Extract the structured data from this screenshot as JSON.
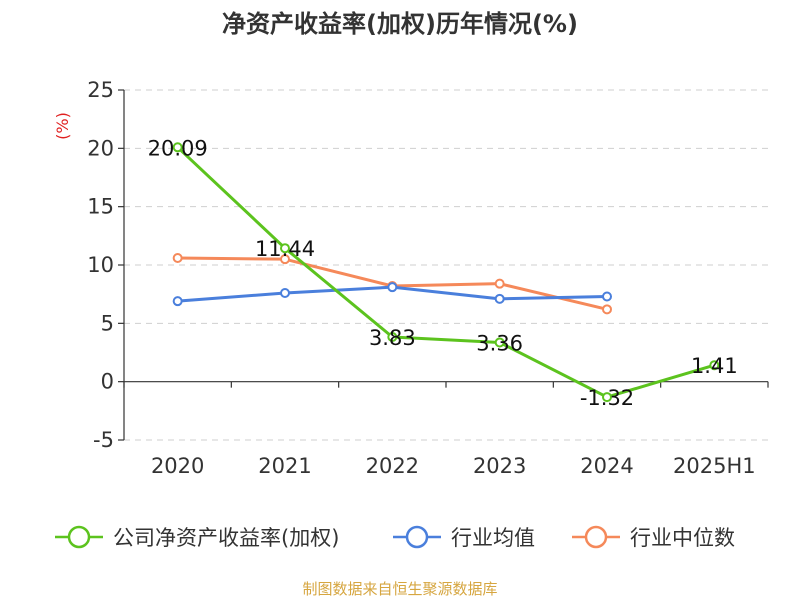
{
  "chart_data": {
    "type": "line",
    "title": "净资产收益率(加权)历年情况(%)",
    "ylabel": "(%)",
    "xlabel": "",
    "categories": [
      "2020",
      "2021",
      "2022",
      "2023",
      "2024",
      "2025H1"
    ],
    "ylim": [
      -5,
      25
    ],
    "yticks": [
      -5,
      0,
      5,
      10,
      15,
      20,
      25
    ],
    "grid": true,
    "legend_position": "bottom",
    "series": [
      {
        "name": "公司净资产收益率(加权)",
        "color": "#5cc31e",
        "values": [
          20.09,
          11.44,
          3.83,
          3.36,
          -1.32,
          1.41
        ],
        "labels": [
          "20.09",
          "11.44",
          "3.83",
          "3.36",
          "-1.32",
          "1.41"
        ]
      },
      {
        "name": "行业均值",
        "color": "#4a7fdc",
        "values": [
          6.9,
          7.6,
          8.1,
          7.1,
          7.3,
          null
        ]
      },
      {
        "name": "行业中位数",
        "color": "#f5895a",
        "values": [
          10.6,
          10.5,
          8.2,
          8.4,
          6.2,
          null
        ]
      }
    ]
  },
  "source": "制图数据来自恒生聚源数据库"
}
